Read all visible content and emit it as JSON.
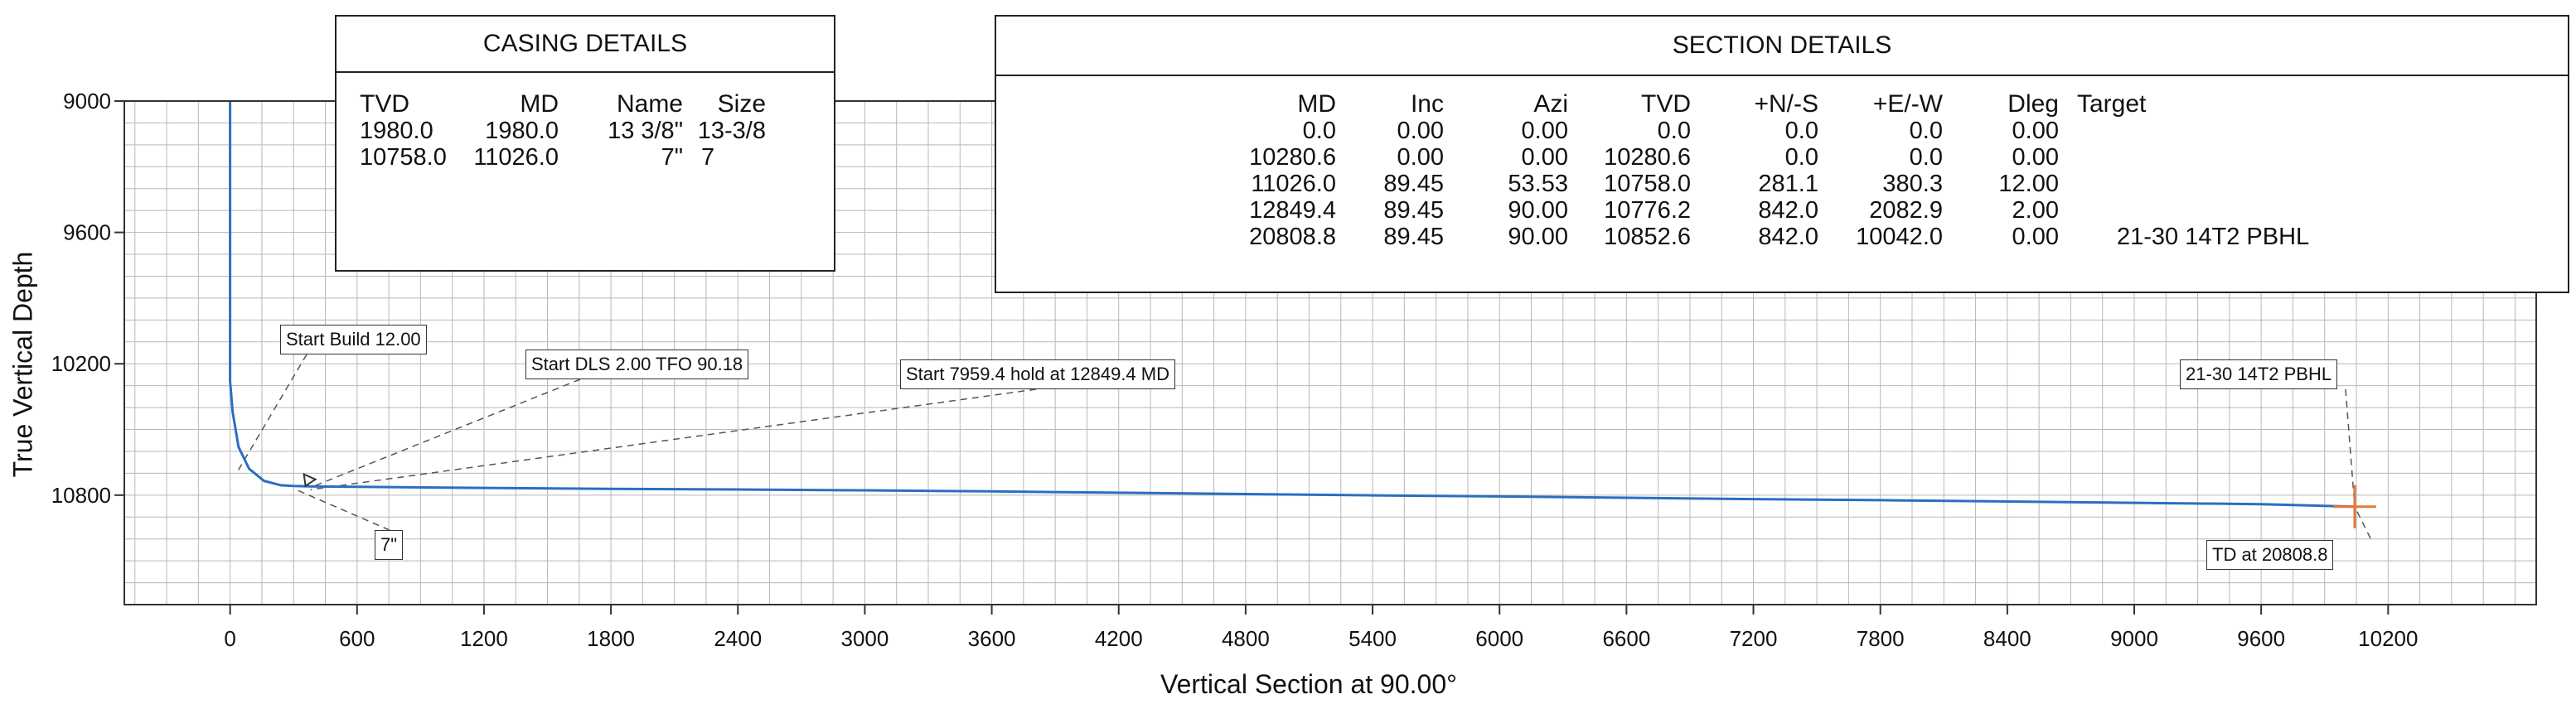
{
  "chart_data": {
    "type": "line",
    "xlabel": "Vertical Section at 90.00°",
    "ylabel": "True Vertical Depth",
    "xlim": [
      -500,
      10900
    ],
    "ylim": [
      9000,
      11300
    ],
    "x_ticks": [
      0,
      600,
      1200,
      1800,
      2400,
      3000,
      3600,
      4200,
      4800,
      5400,
      6000,
      6600,
      7200,
      7800,
      8400,
      9000,
      9600,
      10200
    ],
    "y_ticks": [
      9000,
      9600,
      10200,
      10800
    ],
    "y_inverted": true,
    "grid": true,
    "series": [
      {
        "x": [
          0,
          0,
          12,
          40,
          90,
          160,
          240,
          300,
          380,
          600,
          1200,
          1800,
          2400,
          3000,
          3600,
          4200,
          4800,
          5400,
          6000,
          6600,
          7200,
          7800,
          8400,
          9000,
          9600,
          10042
        ],
        "y": [
          8950,
          10280.6,
          10420,
          10580,
          10680,
          10735,
          10755,
          10758,
          10760,
          10762,
          10767,
          10771,
          10774,
          10778,
          10783,
          10789,
          10795,
          10801,
          10806,
          10812,
          10818,
          10823,
          10829,
          10835,
          10841,
          10852.6
        ]
      }
    ],
    "target_point": {
      "x": 10042,
      "y": 10852.6
    },
    "annotations": [
      {
        "text": "Start Build 12.00",
        "x": 0,
        "y": 10280.6
      },
      {
        "text": "Start DLS 2.00 TFO 90.18",
        "x": 380,
        "y": 10758
      },
      {
        "text": "Start 7959.4 hold at 12849.4 MD",
        "x": 2083,
        "y": 10776
      },
      {
        "text": "21-30 14T2 PBHL",
        "x": 10042,
        "y": 10852.6
      },
      {
        "text": "TD at 20808.8",
        "x": 10042,
        "y": 10852.6
      },
      {
        "text": "7\"",
        "x": 380,
        "y": 10758
      }
    ]
  },
  "casing_details": {
    "title": "CASING DETAILS",
    "headers": [
      "TVD",
      "MD",
      "Name",
      "Size"
    ],
    "rows": [
      [
        "1980.0",
        "1980.0",
        "13 3/8\"",
        "13-3/8"
      ],
      [
        "10758.0",
        "11026.0",
        "7\"",
        "7"
      ]
    ]
  },
  "section_details": {
    "title": "SECTION DETAILS",
    "headers": [
      "MD",
      "Inc",
      "Azi",
      "TVD",
      "+N/-S",
      "+E/-W",
      "Dleg",
      "Target"
    ],
    "rows": [
      [
        "0.0",
        "0.00",
        "0.00",
        "0.0",
        "0.0",
        "0.0",
        "0.00",
        ""
      ],
      [
        "10280.6",
        "0.00",
        "0.00",
        "10280.6",
        "0.0",
        "0.0",
        "0.00",
        ""
      ],
      [
        "11026.0",
        "89.45",
        "53.53",
        "10758.0",
        "281.1",
        "380.3",
        "12.00",
        ""
      ],
      [
        "12849.4",
        "89.45",
        "90.00",
        "10776.2",
        "842.0",
        "2082.9",
        "2.00",
        ""
      ],
      [
        "20808.8",
        "89.45",
        "90.00",
        "10852.6",
        "842.0",
        "10042.0",
        "0.00",
        "21-30 14T2 PBHL"
      ]
    ]
  },
  "colors": {
    "trajectory": "#2a6fc0",
    "target_marker": "#e07a3a",
    "grid": "#b8b8b8",
    "frame": "#333333"
  }
}
